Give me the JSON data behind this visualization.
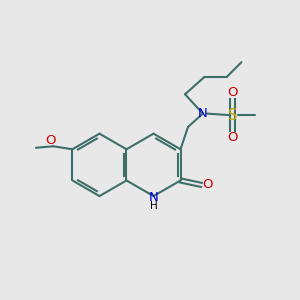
{
  "bg_color": "#e8e8e8",
  "bond_color": "#3d7068",
  "bond_width": 1.5,
  "N_color": "#0000cc",
  "O_color": "#cc0000",
  "S_color": "#ccaa00",
  "font_size": 8.5,
  "fig_size": [
    3.0,
    3.0
  ],
  "dpi": 100,
  "xlim": [
    0,
    10
  ],
  "ylim": [
    0,
    10
  ]
}
